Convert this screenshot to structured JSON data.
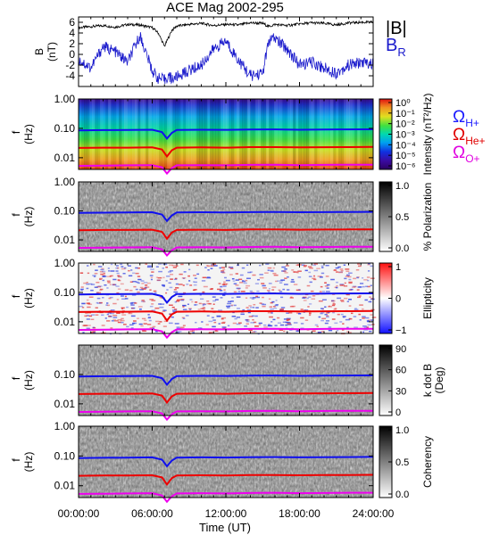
{
  "figure": {
    "title": "ACE Mag 2002-295",
    "xlabel": "Time (UT)",
    "xticks": [
      "00:00:00",
      "06:00:00",
      "12:00:00",
      "18:00:00",
      "24:00:00"
    ]
  },
  "legend_b": {
    "total": "|B|",
    "radial": "B",
    "radial_sub": "R",
    "total_color": "#000000",
    "radial_color": "#1a1acc"
  },
  "legend_omega": {
    "symbol": "Ω",
    "items": [
      {
        "sub": "H+",
        "color": "#1a1aff"
      },
      {
        "sub": "He+",
        "color": "#e00000"
      },
      {
        "sub": "O+",
        "color": "#e000e0"
      }
    ]
  },
  "colors": {
    "hplus": "#1010ee",
    "heplus": "#ee0000",
    "oplus": "#ee00ee",
    "b_total": "#000000",
    "b_radial": "#1a1acc"
  },
  "chart_data": [
    {
      "type": "line",
      "panel": "B field",
      "ylabel": "B",
      "yunit": "(nT)",
      "ylim": [
        -6,
        7
      ],
      "yticks": [
        "6",
        "4",
        "2",
        "0",
        "-2",
        "-4"
      ],
      "x_hours": [
        0,
        1,
        2,
        3,
        4,
        5,
        6,
        6.5,
        7,
        7.3,
        7.6,
        8,
        9,
        10,
        11,
        12,
        13,
        14,
        15,
        15.5,
        16,
        17,
        18,
        19,
        20,
        21,
        22,
        23,
        24
      ],
      "series": [
        {
          "name": "|B|",
          "values": [
            5.0,
            5.2,
            5.4,
            5.1,
            5.6,
            5.5,
            5.0,
            4.0,
            1.5,
            3.0,
            4.5,
            5.3,
            5.6,
            5.8,
            5.4,
            5.6,
            5.5,
            5.9,
            5.8,
            5.2,
            5.6,
            5.4,
            5.7,
            5.9,
            5.8,
            5.5,
            5.9,
            6.0,
            6.0
          ]
        },
        {
          "name": "B_R",
          "values": [
            -1.0,
            -2.5,
            1.5,
            0.5,
            -1.5,
            3.5,
            -3.0,
            -4.5,
            -4.8,
            -4.0,
            -4.6,
            -4.2,
            -3.0,
            -2.0,
            1.0,
            2.5,
            -1.0,
            -4.0,
            -3.5,
            2.5,
            3.0,
            1.0,
            -2.0,
            -1.5,
            -2.5,
            -3.5,
            -2.0,
            -1.5,
            -1.8
          ]
        }
      ]
    },
    {
      "type": "heatmap",
      "panel": "Intensity",
      "ylabel": "f",
      "yunit": "(Hz)",
      "yscale": "log",
      "ylim": [
        0.004,
        1.0
      ],
      "yticks": [
        "1.00",
        "0.10",
        "0.01"
      ],
      "colorbar_label": "Intensity (nT²/Hz)",
      "colorbar_ticks": [
        "10⁰",
        "10⁻¹",
        "10⁻²",
        "10⁻³",
        "10⁻⁴",
        "10⁻⁵",
        "10⁻⁶"
      ]
    },
    {
      "type": "heatmap",
      "panel": "% Polarization",
      "ylabel": "f",
      "yunit": "(Hz)",
      "yscale": "log",
      "ylim": [
        0.004,
        1.0
      ],
      "yticks": [
        "1.00",
        "0.10",
        "0.01"
      ],
      "colorbar_label": "% Polarization",
      "colorbar_ticks": [
        "1.0",
        "0.5",
        "0.0"
      ]
    },
    {
      "type": "heatmap",
      "panel": "Ellipticity",
      "ylabel": "f",
      "yunit": "(Hz)",
      "yscale": "log",
      "ylim": [
        0.004,
        1.0
      ],
      "yticks": [
        "1.00",
        "0.10",
        "0.01"
      ],
      "colorbar_label": "Ellipticity",
      "colorbar_ticks": [
        "1",
        "0",
        "−1"
      ]
    },
    {
      "type": "heatmap",
      "panel": "k dot B",
      "ylabel": "f",
      "yunit": "(Hz)",
      "yscale": "log",
      "ylim": [
        0.004,
        1.0
      ],
      "yticks": [
        "0.10",
        "0.01"
      ],
      "colorbar_label": "k dot B",
      "colorbar_unit": "(Deg)",
      "colorbar_ticks": [
        "90",
        "60",
        "30",
        "0"
      ]
    },
    {
      "type": "heatmap",
      "panel": "Coherency",
      "ylabel": "f",
      "yunit": "(Hz)",
      "yscale": "log",
      "ylim": [
        0.004,
        1.0
      ],
      "yticks": [
        "1.00",
        "0.10",
        "0.01"
      ],
      "colorbar_label": "Coherency",
      "colorbar_ticks": [
        "1.0",
        "0.5",
        "0.0"
      ]
    }
  ],
  "gyro_lines": {
    "x_hours": [
      0,
      2,
      4,
      6,
      6.8,
      7.2,
      7.6,
      8,
      10,
      12,
      14,
      16,
      18,
      20,
      22,
      24
    ],
    "hplus_hz": [
      0.085,
      0.087,
      0.088,
      0.09,
      0.075,
      0.045,
      0.07,
      0.088,
      0.09,
      0.089,
      0.091,
      0.092,
      0.09,
      0.091,
      0.092,
      0.093
    ],
    "heplus_hz": [
      0.0215,
      0.022,
      0.022,
      0.0225,
      0.019,
      0.011,
      0.018,
      0.022,
      0.0225,
      0.022,
      0.023,
      0.023,
      0.0225,
      0.0228,
      0.023,
      0.0232
    ],
    "oplus_hz": [
      0.0053,
      0.0054,
      0.0055,
      0.0056,
      0.0047,
      0.0029,
      0.0044,
      0.0055,
      0.0056,
      0.0055,
      0.0057,
      0.0058,
      0.0056,
      0.0057,
      0.0058,
      0.0058
    ]
  }
}
